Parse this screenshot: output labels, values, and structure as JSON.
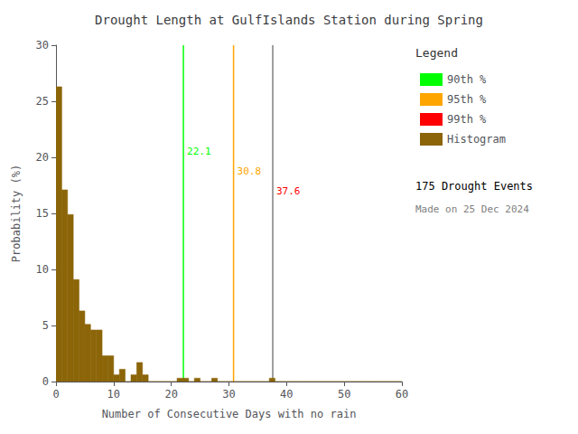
{
  "chart_data": {
    "type": "histogram",
    "title": "Drought Length at GulfIslands Station during Spring",
    "xlabel": "Number of Consecutive Days with no rain",
    "ylabel": "Probability (%)",
    "bins": [
      0,
      1,
      2,
      3,
      4,
      5,
      6,
      7,
      8,
      9,
      10,
      11,
      12,
      13,
      14,
      15,
      16,
      17,
      18,
      19,
      20,
      21,
      22,
      23,
      24,
      25,
      26,
      27,
      28,
      29,
      30,
      31,
      32,
      33,
      34,
      35,
      36,
      37,
      38,
      39,
      40,
      41,
      42,
      43,
      44,
      45,
      46,
      47,
      48,
      49,
      50,
      51,
      52,
      53,
      54,
      55,
      56,
      57,
      58,
      59,
      60
    ],
    "values": [
      26.3,
      17.1,
      14.9,
      9.1,
      6.3,
      5.1,
      4.6,
      4.6,
      2.3,
      2.3,
      0.6,
      1.1,
      0.0,
      0.6,
      1.7,
      0.6,
      0.0,
      0.0,
      0.0,
      0.0,
      0.0,
      0.3,
      0.3,
      0.0,
      0.3,
      0.0,
      0.0,
      0.3,
      0.0,
      0.0,
      0.0,
      0.0,
      0.0,
      0.0,
      0.0,
      0.0,
      0.0,
      0.3,
      0.0,
      0.0,
      0.0,
      0.0,
      0.0,
      0.0,
      0.0,
      0.0,
      0.0,
      0.0,
      0.0,
      0.0,
      0.0,
      0.0,
      0.0,
      0.0,
      0.0,
      0.0,
      0.0,
      0.0,
      0.0,
      0.0
    ],
    "name": "Histogram",
    "color": "#8B6508",
    "xlim": [
      0,
      60
    ],
    "ylim": [
      0,
      30
    ],
    "xticks": [
      0,
      10,
      20,
      30,
      40,
      50,
      60
    ],
    "yticks": [
      0,
      5,
      10,
      15,
      20,
      25,
      30
    ],
    "grid": false,
    "legend": "upper right",
    "legend_title": "Legend",
    "lines": [
      {
        "name": "90th %",
        "x": 22.1,
        "label": "22.1",
        "color": "#00FF00",
        "label_color": "#00FF00",
        "legend_color": "#00FF00"
      },
      {
        "name": "95th %",
        "x": 30.8,
        "label": "30.8",
        "color": "#FFA500",
        "label_color": "#FFA500",
        "legend_color": "#FFA500"
      },
      {
        "name": "99th %",
        "x": 37.6,
        "label": "37.6",
        "color": "#808080",
        "label_color": "#FF0000",
        "legend_color": "#FF0000"
      }
    ],
    "annotations": [
      {
        "text": "175 Drought Events",
        "color": "black"
      },
      {
        "text": "Made on 25 Dec 2024",
        "color": "gray"
      }
    ]
  }
}
